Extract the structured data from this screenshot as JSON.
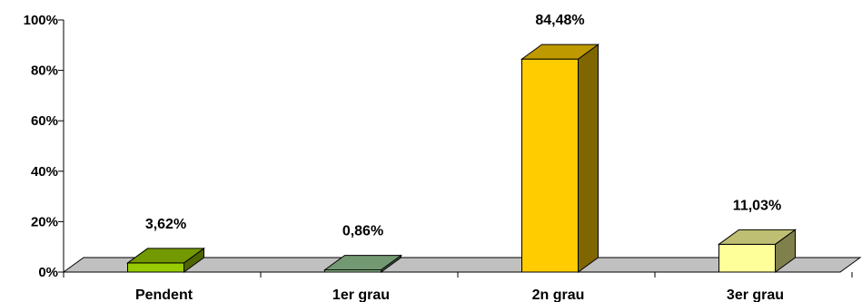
{
  "chart_data": {
    "type": "bar",
    "style": "3d-column",
    "categories": [
      "Pendent",
      "1er grau",
      "2n grau",
      "3er grau"
    ],
    "values": [
      3.62,
      0.86,
      84.48,
      11.03
    ],
    "value_labels": [
      "3,62%",
      "0,86%",
      "84,48%",
      "11,03%"
    ],
    "bar_colors": [
      "#99CC00",
      "#99CC99",
      "#FFCC00",
      "#FFFF99"
    ],
    "floor_color": "#C0C0C0",
    "yticks": [
      "0%",
      "20%",
      "40%",
      "60%",
      "80%",
      "100%"
    ],
    "ylim": [
      0,
      100
    ],
    "title": "",
    "xlabel": "",
    "ylabel": "",
    "grid": false,
    "legend": "none"
  }
}
